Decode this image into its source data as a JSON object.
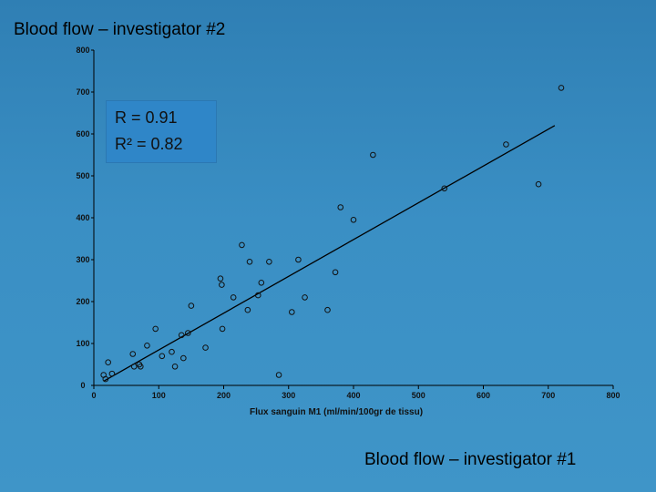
{
  "slide": {
    "title": "Blood flow – investigator #2",
    "footer": "Blood flow – investigator #1"
  },
  "stats": {
    "r_text": "R = 0.91",
    "r2_text": "R² = 0.82"
  },
  "chart_data": {
    "type": "scatter",
    "xlabel": "Flux sanguin M1 (ml/min/100gr de tissu)",
    "ylabel": "",
    "xlim": [
      0,
      800
    ],
    "ylim": [
      0,
      800
    ],
    "x_ticks": [
      0,
      100,
      200,
      300,
      400,
      500,
      600,
      700,
      800
    ],
    "y_ticks": [
      0,
      100,
      200,
      300,
      400,
      500,
      600,
      700,
      800
    ],
    "grid": false,
    "points": [
      {
        "x": 15,
        "y": 25
      },
      {
        "x": 18,
        "y": 15
      },
      {
        "x": 22,
        "y": 55
      },
      {
        "x": 28,
        "y": 28
      },
      {
        "x": 60,
        "y": 75
      },
      {
        "x": 62,
        "y": 45
      },
      {
        "x": 70,
        "y": 50
      },
      {
        "x": 72,
        "y": 45
      },
      {
        "x": 82,
        "y": 95
      },
      {
        "x": 95,
        "y": 135
      },
      {
        "x": 105,
        "y": 70
      },
      {
        "x": 120,
        "y": 80
      },
      {
        "x": 125,
        "y": 45
      },
      {
        "x": 135,
        "y": 120
      },
      {
        "x": 138,
        "y": 65
      },
      {
        "x": 145,
        "y": 125
      },
      {
        "x": 150,
        "y": 190
      },
      {
        "x": 172,
        "y": 90
      },
      {
        "x": 195,
        "y": 255
      },
      {
        "x": 197,
        "y": 240
      },
      {
        "x": 198,
        "y": 135
      },
      {
        "x": 215,
        "y": 210
      },
      {
        "x": 228,
        "y": 335
      },
      {
        "x": 237,
        "y": 180
      },
      {
        "x": 240,
        "y": 295
      },
      {
        "x": 253,
        "y": 215
      },
      {
        "x": 258,
        "y": 245
      },
      {
        "x": 270,
        "y": 295
      },
      {
        "x": 285,
        "y": 25
      },
      {
        "x": 305,
        "y": 175
      },
      {
        "x": 315,
        "y": 300
      },
      {
        "x": 325,
        "y": 210
      },
      {
        "x": 360,
        "y": 180
      },
      {
        "x": 372,
        "y": 270
      },
      {
        "x": 380,
        "y": 425
      },
      {
        "x": 400,
        "y": 395
      },
      {
        "x": 430,
        "y": 550
      },
      {
        "x": 540,
        "y": 470
      },
      {
        "x": 635,
        "y": 575
      },
      {
        "x": 685,
        "y": 480
      },
      {
        "x": 720,
        "y": 710
      }
    ],
    "fit_line": {
      "x": [
        15,
        710
      ],
      "y": [
        10,
        620
      ]
    }
  }
}
